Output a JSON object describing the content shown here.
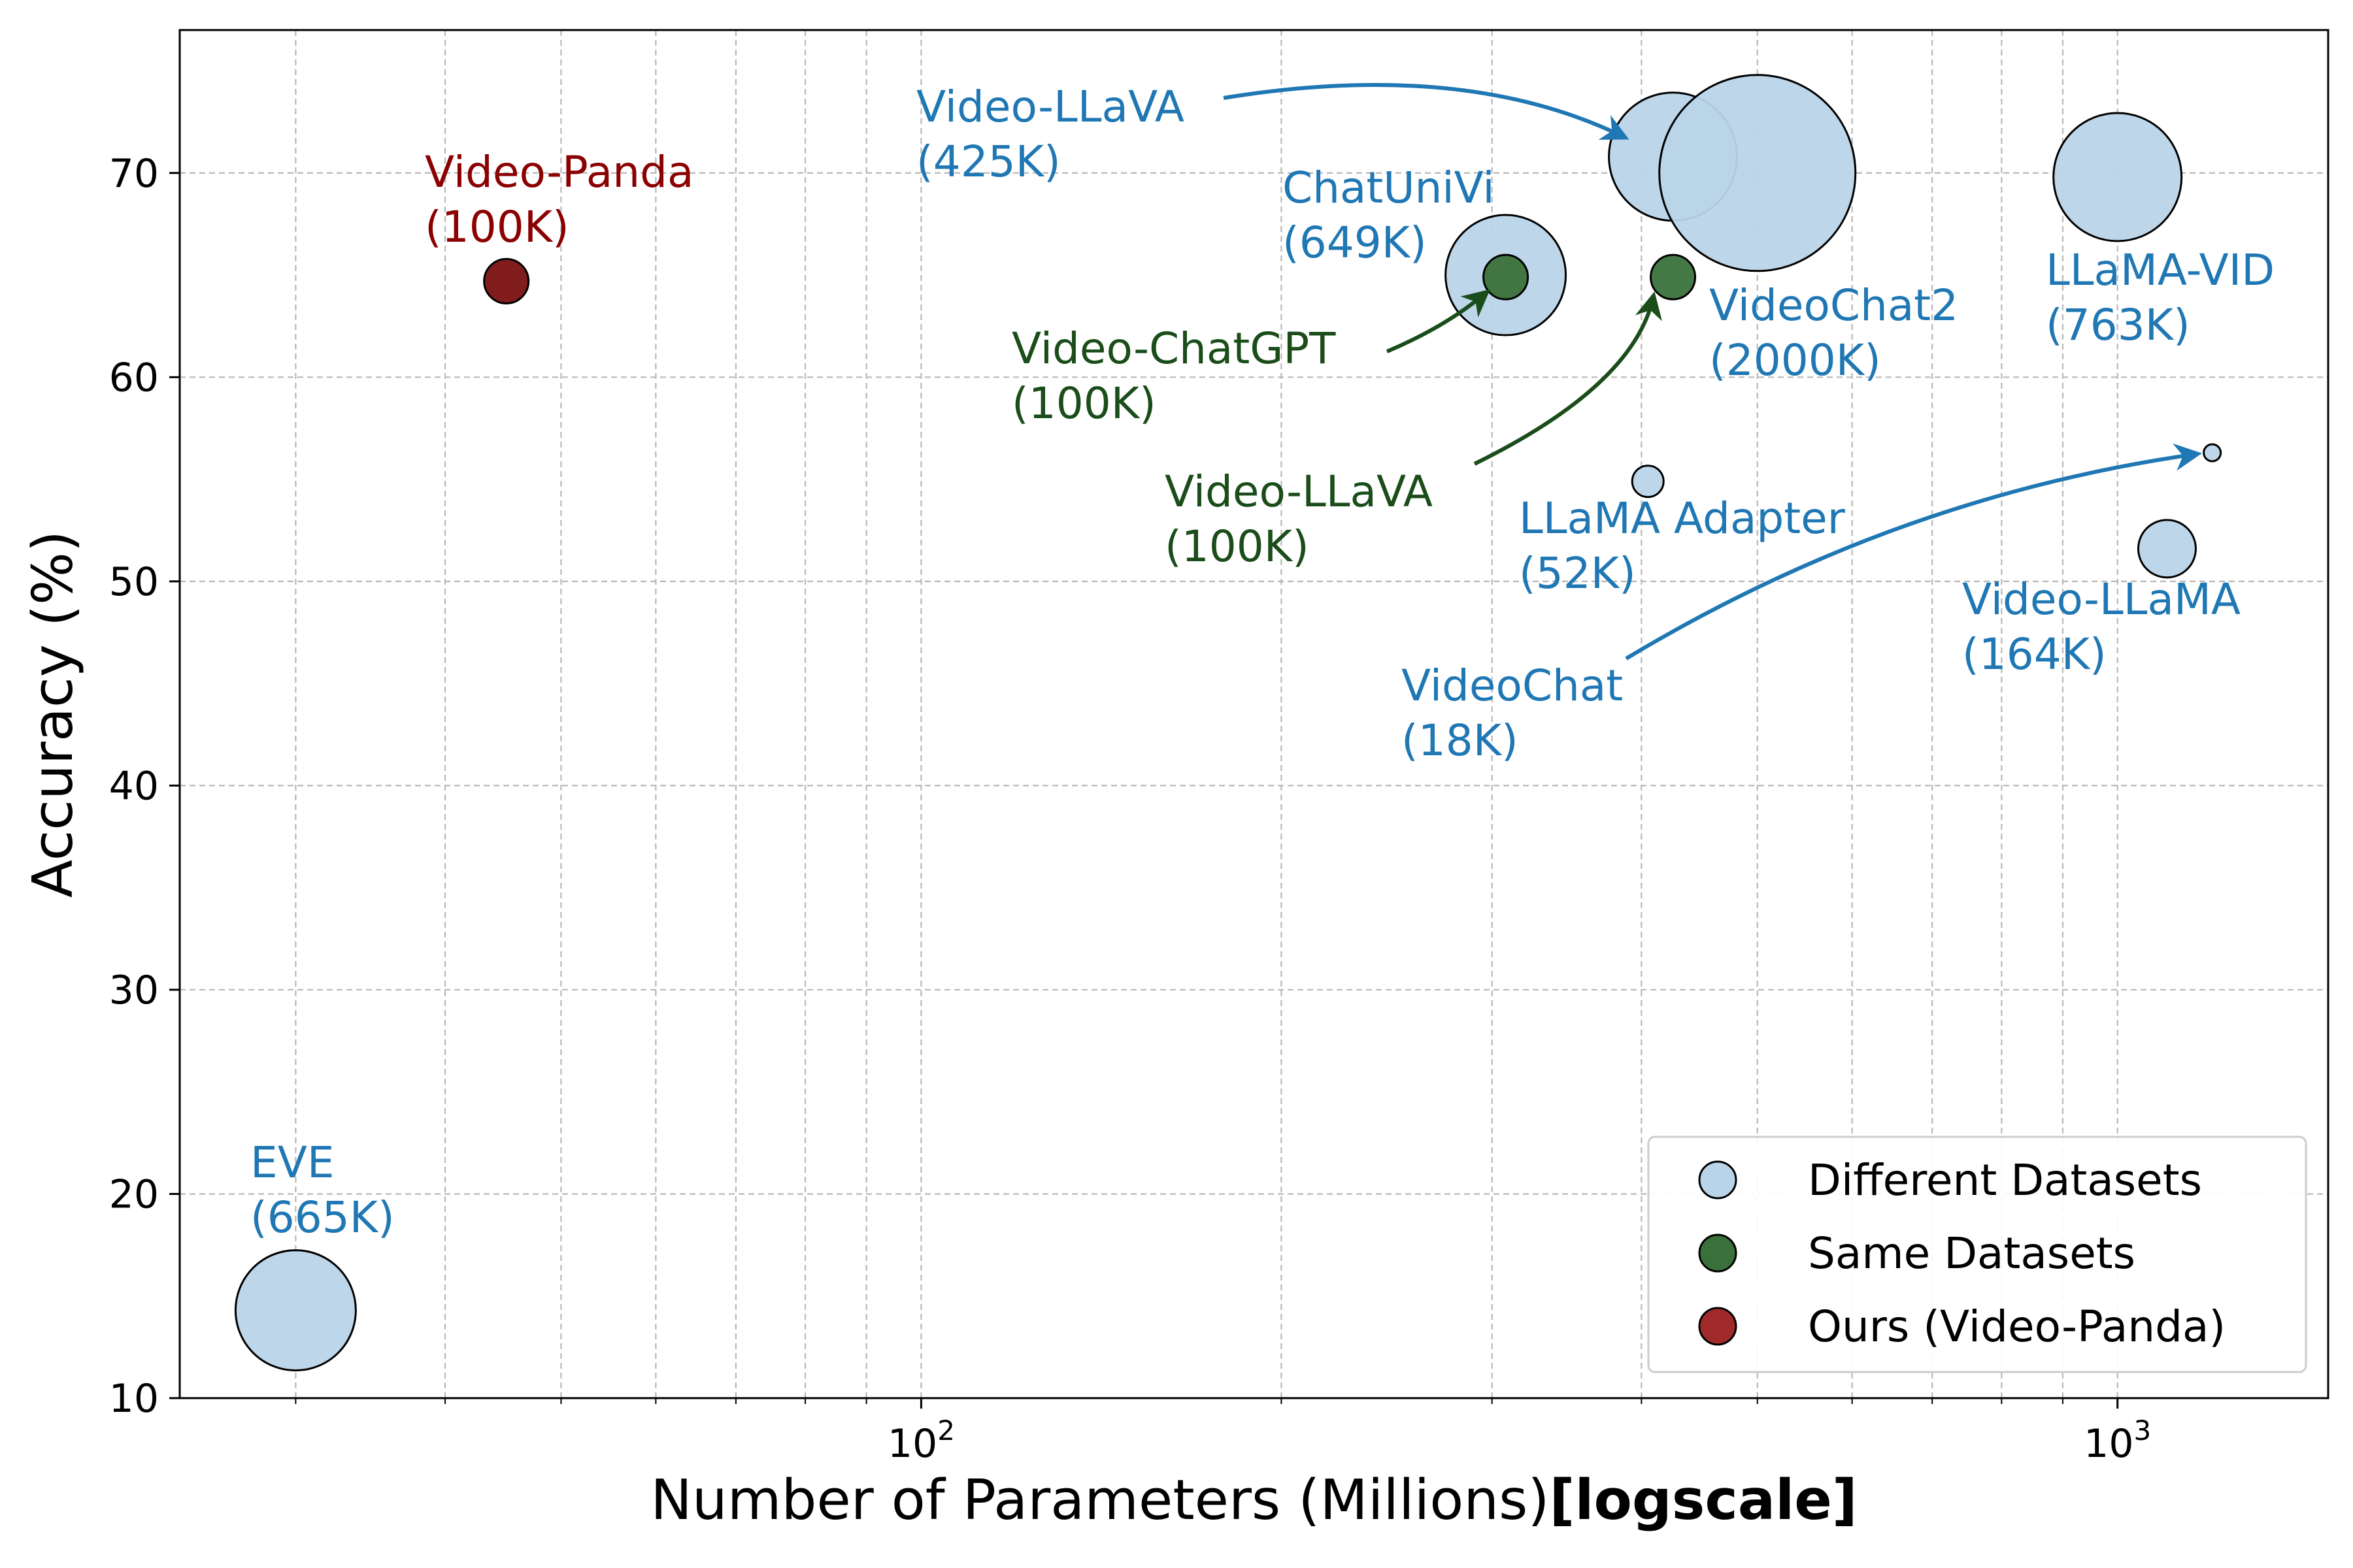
{
  "chart_data": {
    "type": "scatter",
    "xscale": "log",
    "xlabel": "Number of Parameters (Millions)",
    "xlabel_suffix": "[logscale]",
    "ylabel": "Accuracy (%)",
    "xlim": [
      24,
      1500
    ],
    "ylim": [
      10,
      77
    ],
    "xticks": [
      {
        "value": 100,
        "base": "10",
        "exp": "2"
      },
      {
        "value": 1000,
        "base": "10",
        "exp": "3"
      }
    ],
    "yticks": [
      10,
      20,
      30,
      40,
      50,
      60,
      70
    ],
    "grid": true,
    "legend_position": "lower-right",
    "colors": {
      "different": "#b9d4e8",
      "same": "#3a713a",
      "ours": "#7a1010",
      "label_different": "#1f77b4",
      "label_same": "#1a4d1a",
      "label_ours": "#8b0000",
      "arrow_different": "#1f77b4",
      "arrow_same": "#1a4d1a"
    },
    "legend": [
      {
        "group": "different",
        "label": "Different Datasets",
        "color": "#b9d4e8"
      },
      {
        "group": "same",
        "label": "Same Datasets",
        "color": "#3a713a"
      },
      {
        "group": "ours",
        "label": "Ours (Video-Panda)",
        "color": "#a02a2a"
      }
    ],
    "points": [
      {
        "id": "eve",
        "name": "EVE",
        "data": "(665K)",
        "x": 30,
        "y": 14.3,
        "group": "different"
      },
      {
        "id": "video-panda",
        "name": "Video-Panda",
        "data": "(100K)",
        "x": 45,
        "y": 64.7,
        "group": "ours"
      },
      {
        "id": "chatunivi",
        "name": "ChatUniVi",
        "data": "(649K)",
        "x": 308,
        "y": 65.0,
        "group": "different"
      },
      {
        "id": "video-chatgpt",
        "name": "Video-ChatGPT",
        "data": "(100K)",
        "x": 308,
        "y": 64.9,
        "group": "same"
      },
      {
        "id": "video-llava-425k",
        "name": "Video-LLaVA",
        "data": "(425K)",
        "x": 425,
        "y": 70.8,
        "group": "different"
      },
      {
        "id": "videochat2",
        "name": "VideoChat2",
        "data": "(2000K)",
        "x": 500,
        "y": 70.0,
        "group": "different"
      },
      {
        "id": "video-llava-100k",
        "name": "Video-LLaVA",
        "data": "(100K)",
        "x": 425,
        "y": 64.9,
        "group": "same"
      },
      {
        "id": "llama-adapter",
        "name": "LLaMA Adapter",
        "data": "(52K)",
        "x": 405,
        "y": 54.9,
        "group": "different"
      },
      {
        "id": "llama-vid",
        "name": "LLaMA-VID",
        "data": "(763K)",
        "x": 1000,
        "y": 69.8,
        "group": "different"
      },
      {
        "id": "videochat",
        "name": "VideoChat",
        "data": "(18K)",
        "x": 1200,
        "y": 56.3,
        "group": "different"
      },
      {
        "id": "video-llama",
        "name": "Video-LLaMA",
        "data": "(164K)",
        "x": 1100,
        "y": 51.6,
        "group": "different"
      }
    ]
  }
}
